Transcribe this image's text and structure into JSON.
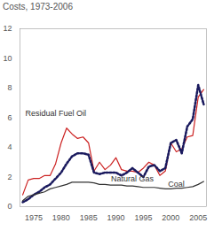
{
  "chart_data": {
    "type": "line",
    "title": "Costs, 1973-2006",
    "x": [
      1973,
      1974,
      1975,
      1976,
      1977,
      1978,
      1979,
      1980,
      1981,
      1982,
      1983,
      1984,
      1985,
      1986,
      1987,
      1988,
      1989,
      1990,
      1991,
      1992,
      1993,
      1994,
      1995,
      1996,
      1997,
      1998,
      1999,
      2000,
      2001,
      2002,
      2003,
      2004,
      2005,
      2006
    ],
    "series": [
      {
        "name": "Residual Fuel Oil",
        "color": "#cc2222",
        "line_style": "solid",
        "values": [
          0.8,
          1.8,
          1.9,
          1.9,
          2.1,
          2.1,
          2.9,
          4.3,
          5.3,
          4.9,
          4.6,
          4.7,
          4.3,
          2.4,
          3.0,
          2.5,
          2.8,
          3.3,
          2.5,
          2.4,
          2.4,
          2.3,
          2.6,
          3.0,
          2.8,
          2.1,
          2.4,
          4.3,
          3.7,
          3.9,
          4.7,
          4.8,
          7.4,
          7.9
        ]
      },
      {
        "name": "Natural Gas",
        "color": "#1a1a5e",
        "line_style": "dotted",
        "values": [
          0.3,
          0.5,
          0.8,
          1.0,
          1.3,
          1.5,
          1.9,
          2.3,
          2.9,
          3.4,
          3.6,
          3.6,
          3.5,
          2.3,
          2.2,
          2.3,
          2.3,
          2.3,
          2.1,
          2.3,
          2.6,
          2.3,
          2.0,
          2.7,
          2.8,
          2.4,
          2.6,
          4.3,
          4.5,
          3.6,
          5.4,
          5.9,
          8.2,
          6.9
        ]
      },
      {
        "name": "Coal",
        "color": "#333333",
        "line_style": "solid",
        "values": [
          0.4,
          0.7,
          0.8,
          0.9,
          1.0,
          1.2,
          1.3,
          1.4,
          1.5,
          1.65,
          1.65,
          1.65,
          1.65,
          1.6,
          1.5,
          1.5,
          1.45,
          1.45,
          1.45,
          1.4,
          1.4,
          1.35,
          1.3,
          1.3,
          1.3,
          1.25,
          1.2,
          1.2,
          1.25,
          1.25,
          1.3,
          1.35,
          1.5,
          1.7
        ]
      }
    ],
    "annotations": [
      {
        "text": "Residual Fuel Oil",
        "x": 1979,
        "y": 6.3
      },
      {
        "text": "Natural Gas",
        "x": 1993,
        "y": 1.9
      },
      {
        "text": "Coal",
        "x": 2001,
        "y": 1.5
      }
    ],
    "xlim": [
      1972.5,
      2006.5
    ],
    "xticks": [
      1975,
      1980,
      1985,
      1990,
      1995,
      2000,
      2005
    ],
    "ylim": [
      0,
      12
    ],
    "yticks": [
      0,
      2,
      4,
      6,
      8,
      10,
      12
    ],
    "grid": false
  }
}
